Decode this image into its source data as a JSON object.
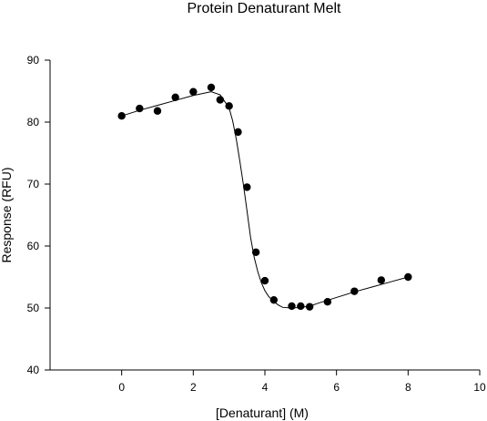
{
  "chart_data": {
    "type": "scatter",
    "title": "Protein Denaturant Melt",
    "xlabel": "[Denaturant] (M)",
    "ylabel": "Response (RFU)",
    "xlim": [
      -2,
      10
    ],
    "ylim": [
      40,
      90
    ],
    "x_ticks": [
      0,
      2,
      4,
      6,
      8,
      10
    ],
    "y_ticks": [
      40,
      50,
      60,
      70,
      80,
      90
    ],
    "grid": false,
    "series": [
      {
        "kind": "points",
        "marker": "filled-circle",
        "color": "#000000",
        "x": [
          0,
          0.5,
          1,
          1.5,
          2,
          2.5,
          2.75,
          3,
          3.25,
          3.5,
          3.75,
          4,
          4.25,
          4.75,
          5,
          5.25,
          5.75,
          6.5,
          7.25,
          8
        ],
        "y": [
          81,
          82.2,
          81.8,
          84,
          84.9,
          85.6,
          83.6,
          82.6,
          78.4,
          69.5,
          59,
          54.4,
          51.3,
          50.3,
          50.3,
          50.2,
          51,
          52.7,
          54.5,
          55
        ]
      },
      {
        "kind": "fit-line",
        "color": "#000000",
        "x": [
          0,
          0.5,
          1,
          1.5,
          2,
          2.5,
          2.75,
          3,
          3.1,
          3.2,
          3.3,
          3.4,
          3.5,
          3.6,
          3.7,
          3.8,
          3.9,
          4,
          4.1,
          4.25,
          4.4,
          4.5,
          4.75,
          5,
          5.25,
          5.5,
          6,
          6.5,
          7,
          7.5,
          8
        ],
        "y": [
          81,
          81.9,
          82.7,
          83.5,
          84.3,
          84.9,
          84.4,
          82.3,
          80.2,
          77.3,
          73.7,
          69.9,
          65.7,
          61.4,
          58.2,
          55.9,
          54.1,
          52.8,
          51.9,
          51.0,
          50.4,
          50.1,
          50.0,
          50.1,
          50.3,
          50.8,
          51.7,
          52.6,
          53.4,
          54.2,
          55
        ]
      }
    ]
  }
}
